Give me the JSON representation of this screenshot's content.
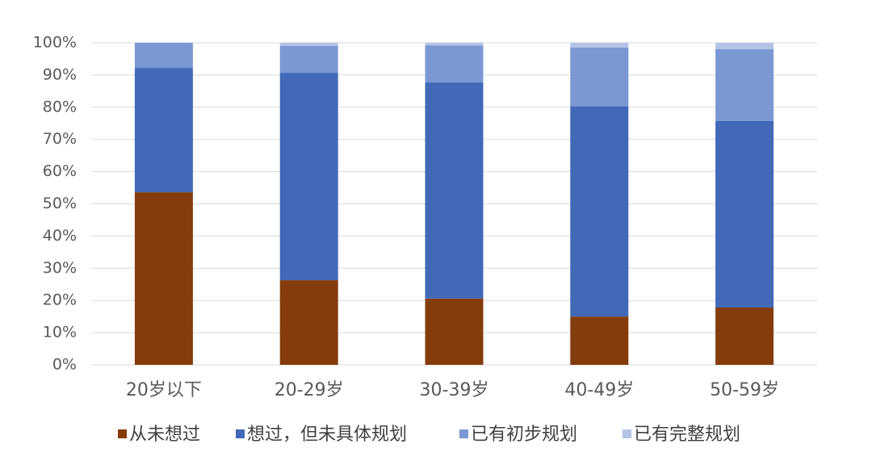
{
  "chart_data": {
    "type": "stacked-bar",
    "categories": [
      "20岁以下",
      "20-29岁",
      "30-39岁",
      "40-49岁",
      "50-59岁"
    ],
    "series": [
      {
        "name": "从未想过",
        "color": "#843c0c",
        "values": [
          53.6,
          26.3,
          20.6,
          15.0,
          17.8
        ]
      },
      {
        "name": "想过，但未具体规划",
        "color": "#4169b8",
        "values": [
          38.6,
          64.4,
          67.1,
          65.2,
          57.9
        ]
      },
      {
        "name": "已有初步规划",
        "color": "#7b97d4",
        "values": [
          7.8,
          8.3,
          11.5,
          18.3,
          22.3
        ]
      },
      {
        "name": "已有完整规划",
        "color": "#b4c3e6",
        "values": [
          0,
          1.0,
          0.8,
          1.5,
          2.0
        ]
      }
    ],
    "ylim": [
      0,
      100
    ],
    "yticks": [
      {
        "value": 0,
        "label": "0%"
      },
      {
        "value": 10,
        "label": "10%"
      },
      {
        "value": 20,
        "label": "20%"
      },
      {
        "value": 30,
        "label": "30%"
      },
      {
        "value": 40,
        "label": "40%"
      },
      {
        "value": 50,
        "label": "50%"
      },
      {
        "value": 60,
        "label": "60%"
      },
      {
        "value": 70,
        "label": "70%"
      },
      {
        "value": 80,
        "label": "80%"
      },
      {
        "value": 90,
        "label": "90%"
      },
      {
        "value": 100,
        "label": "100%"
      }
    ],
    "grid": true
  }
}
